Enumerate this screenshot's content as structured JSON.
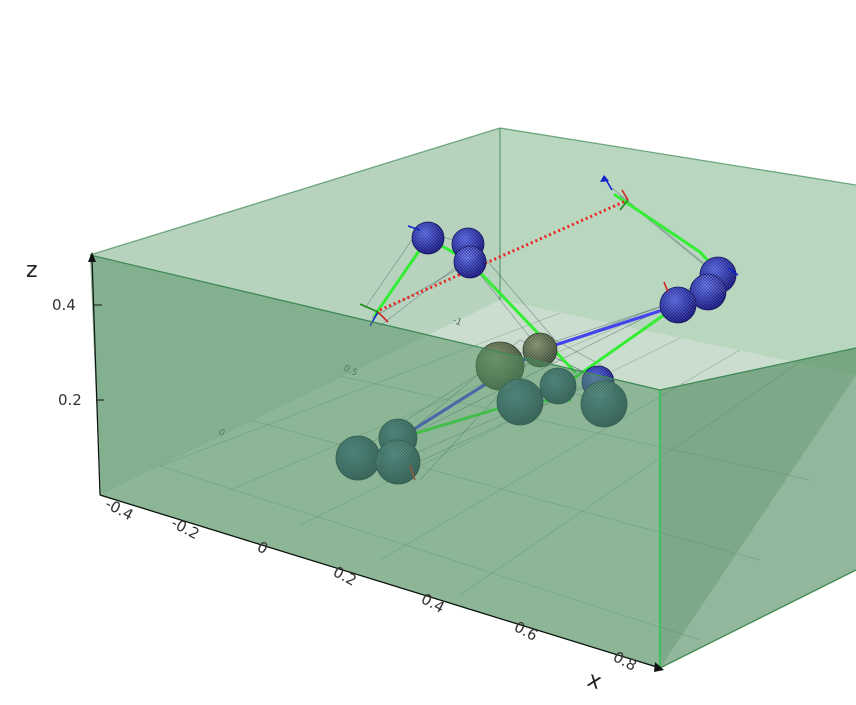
{
  "axes": {
    "z_label": "z",
    "x_label": "x",
    "z_ticks": [
      "0.4",
      "0.2"
    ],
    "x_ticks": [
      "-0.4",
      "-0.2",
      "0",
      "0.2",
      "0.4",
      "0.6",
      "0.8"
    ],
    "floor_ticks": [
      "0",
      "0.5",
      "-1"
    ]
  },
  "colors": {
    "box_fill": "#5f9e6e",
    "box_edge": "#3f8a55",
    "sphere_blue": "#1a1a8c",
    "sphere_dark": "#1f3b5c",
    "sphere_olive": "#5a6a4a",
    "link_green": "#33ee33",
    "link_blue": "#4444ee",
    "dotted_red": "#ee2222",
    "axis_black": "#111111"
  }
}
